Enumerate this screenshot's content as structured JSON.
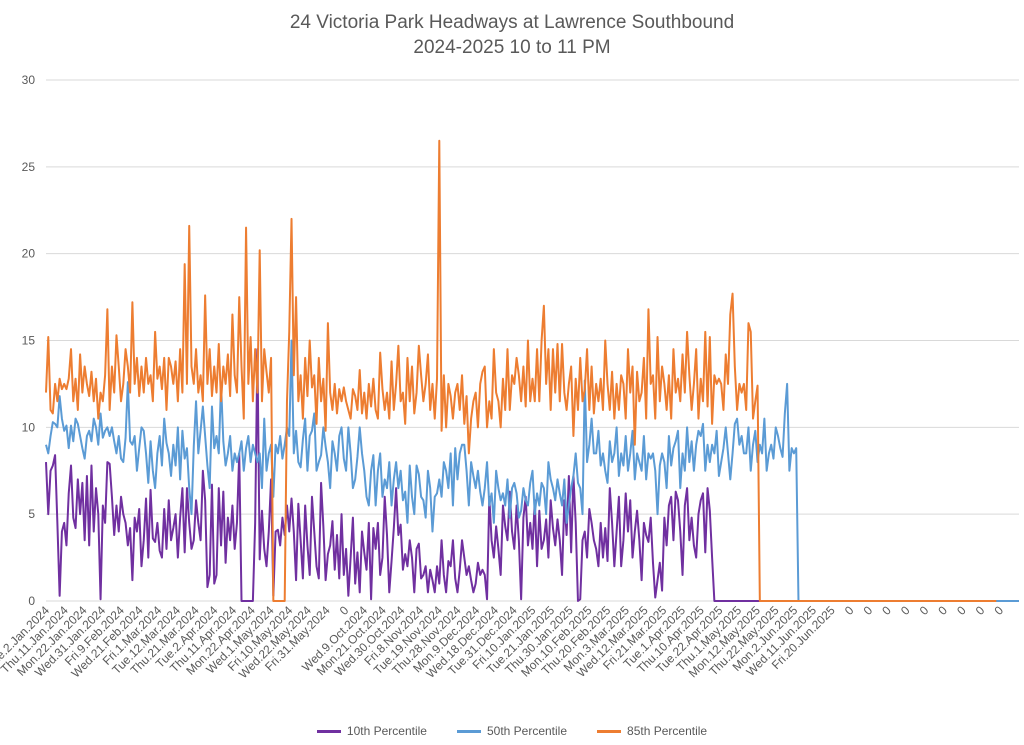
{
  "chart_data": {
    "type": "line",
    "title": "24 Victoria Park Headways at Lawrence Southbound",
    "subtitle": "2024-2025 10 to 11 PM",
    "xlabel": "",
    "ylabel": "",
    "ylim": [
      0,
      30
    ],
    "y_ticks": [
      0,
      5,
      10,
      15,
      20,
      25,
      30
    ],
    "grid": true,
    "legend_position": "bottom",
    "x_tick_labels": [
      "Tue.2.Jan.2024",
      "Thu.11.Jan.2024",
      "Mon.22.Jan.2024",
      "Wed.31.Jan.2024",
      "Fri.9.Feb.2024",
      "Wed.21.Feb.2024",
      "Fri.1.Mar.2024",
      "Tue.12.Mar.2024",
      "Thu.21.Mar.2024",
      "Tue.2.Apr.2024",
      "Thu.11.Apr.2024",
      "Mon.22.Apr.2024",
      "Wed.1.May.2024",
      "Fri.10.May.2024",
      "Wed.22.May.2024",
      "Fri.31.May.2024",
      "0",
      "Wed.9.Oct.2024",
      "Mon.21.Oct.2024",
      "Wed.30.Oct.2024",
      "Fri.8.Nov.2024",
      "Tue.19.Nov.2024",
      "Thu.28.Nov.2024",
      "Mon.9.Dec.2024",
      "Wed.18.Dec.2024",
      "Tue.31.Dec.2024",
      "Fri.10.Jan.2025",
      "Tue.21.Jan.2025",
      "Thu.30.Jan.2025",
      "Mon.10.Feb.2025",
      "Thu.20.Feb.2025",
      "Mon.3.Mar.2025",
      "Wed.12.Mar.2025",
      "Fri.21.Mar.2025",
      "Tue.1.Apr.2025",
      "Thu.10.Apr.2025",
      "Tue.22.Apr.2025",
      "Thu.1.May.2025",
      "Mon.12.May.2025",
      "Thu.22.May.2025",
      "Mon.2.Jun.2025",
      "Wed.11.Jun.2025",
      "Fri.20.Jun.2025",
      "0",
      "0",
      "0",
      "0",
      "0",
      "0",
      "0",
      "0",
      "0"
    ],
    "series": [
      {
        "name": "10th Percentile",
        "color": "#7030A0",
        "values": [
          8,
          5,
          7.5,
          7.8,
          8.4,
          4.5,
          0.3,
          4,
          4.5,
          3.2,
          6.2,
          7.8,
          4.8,
          4.2,
          7,
          5,
          6.8,
          3.5,
          7.2,
          3.2,
          7.8,
          4,
          6.5,
          5,
          0.1,
          5.5,
          4.5,
          8,
          7.9,
          6,
          3.8,
          5.5,
          4,
          6,
          5,
          4.5,
          3.2,
          4.2,
          1.2,
          4.8,
          4,
          5.3,
          2,
          3.5,
          5.9,
          2.5,
          6.4,
          3.6,
          3.4,
          4.5,
          2.9,
          2.5,
          5.3,
          3,
          5.8,
          3.5,
          4.2,
          5,
          2.5,
          4.8,
          6.5,
          2.8,
          6.5,
          4.5,
          3,
          3.5,
          5.8,
          4.5,
          3.5,
          7.5,
          5.8,
          0.8,
          1.5,
          6.7,
          1,
          1.5,
          6.5,
          3.2,
          6.3,
          2.2,
          4.8,
          3.5,
          5.5,
          3,
          4.5,
          8.5,
          0,
          0,
          0,
          0,
          0,
          0,
          4.5,
          14.5,
          2.4,
          5.2,
          3,
          2,
          4,
          7,
          0.3,
          4,
          4.1,
          3.2,
          4.8,
          3.8,
          5.5,
          4,
          5.9,
          4,
          1.2,
          5.6,
          3.5,
          1.3,
          5.5,
          3.2,
          1.5,
          6,
          4,
          2,
          1.3,
          6.8,
          4.3,
          1.2,
          2.7,
          3.2,
          4.6,
          1.8,
          3.8,
          1.3,
          5,
          1.5,
          3,
          0.3,
          2.5,
          4.8,
          1,
          2.8,
          0.5,
          4,
          2.8,
          1.8,
          4.5,
          0.1,
          4.2,
          3,
          4.5,
          1.5,
          2.5,
          6,
          3.8,
          0.5,
          2.3,
          4.2,
          6.5,
          3.8,
          4.4,
          1.8,
          2.7,
          2,
          3.5,
          2.5,
          0.5,
          3,
          3.3,
          1.3,
          1.5,
          2,
          0.5,
          1.8,
          1.2,
          0.5,
          2,
          1,
          3.5,
          1.5,
          0.5,
          2.3,
          2,
          3.5,
          1.3,
          0.5,
          1.8,
          3.5,
          2.5,
          1.5,
          2,
          1.2,
          0.5,
          1,
          2.2,
          1.5,
          1.8,
          1.5,
          0.1,
          6,
          3.5,
          2.5,
          4.3,
          3,
          1.5,
          5.5,
          4.3,
          3.5,
          6.3,
          4,
          3,
          5.5,
          3.5,
          0.1,
          4.8,
          6,
          3.2,
          4.5,
          3,
          5.8,
          2,
          5.2,
          3,
          3.5,
          4.7,
          2.5,
          5.8,
          4.2,
          3.2,
          4.7,
          3.5,
          1.5,
          5.8,
          3.8,
          7.2,
          2.8,
          7.2,
          4.5,
          0,
          0.1,
          3.5,
          4,
          2.5,
          5.3,
          4.5,
          3.5,
          3,
          2,
          4.5,
          2.5,
          4.2,
          2.3,
          6.5,
          4.5,
          2,
          4,
          6,
          2,
          3.5,
          6.2,
          4,
          5.8,
          2.5,
          4,
          5.2,
          3.5,
          1.2,
          4.5,
          3.8,
          3.4,
          4.8,
          2.2,
          0.2,
          1.2,
          2.2,
          0.6,
          4.8,
          3.2,
          5.5,
          6,
          3.5,
          6.3,
          5.8,
          4,
          1.5,
          5.5,
          6.5,
          3.5,
          4.8,
          3.2,
          2.5,
          5,
          5.8,
          6.2,
          2.8,
          6.5,
          5.2,
          2.5,
          0,
          0,
          0,
          0,
          0,
          0,
          0,
          0,
          0,
          0,
          0,
          0,
          0,
          0,
          0,
          0,
          0,
          0,
          0,
          0,
          0,
          0,
          0,
          0,
          0,
          0,
          0,
          0,
          0,
          0,
          0,
          0,
          0,
          0,
          0,
          0,
          0,
          0,
          0,
          0,
          0,
          0,
          0,
          0,
          0,
          0,
          0,
          0,
          0,
          0,
          0,
          0,
          0,
          0,
          0,
          0,
          0,
          0,
          0,
          0,
          0,
          0,
          0,
          0,
          0,
          0,
          0,
          0,
          0,
          0,
          0,
          0,
          0,
          0,
          0,
          0,
          0,
          0,
          0,
          0,
          0,
          0,
          0,
          0,
          0,
          0,
          0,
          0,
          0
        ]
      },
      {
        "name": "50th Percentile",
        "color": "#5B9BD5",
        "values": [
          9,
          8.5,
          9.5,
          10.3,
          10.2,
          10,
          11.8,
          10.5,
          9.8,
          10.1,
          8.8,
          10.1,
          9.2,
          10.5,
          10.2,
          9.5,
          8.8,
          8.2,
          9.5,
          9.8,
          9.2,
          10.5,
          10,
          9,
          10.8,
          9.4,
          9.8,
          10,
          9.5,
          10,
          9.2,
          8.5,
          9.5,
          8.2,
          8,
          9.4,
          12.6,
          9.2,
          9,
          9.5,
          7.5,
          8.8,
          10,
          9.8,
          8.5,
          6.8,
          9.2,
          7.5,
          6.5,
          8.5,
          9.5,
          7.8,
          10.5,
          9.1,
          8.5,
          7.2,
          9,
          7.8,
          10,
          7,
          9.8,
          8.2,
          8.8,
          6.5,
          5,
          8.9,
          11.5,
          8.5,
          9.8,
          11.2,
          9.5,
          7.8,
          6.5,
          11.2,
          8.8,
          9.5,
          8.5,
          12.5,
          9.2,
          7.8,
          8.5,
          9.5,
          7.5,
          8.5,
          8,
          8.5,
          9.2,
          7.5,
          8.8,
          9.5,
          8,
          9,
          8.5,
          8,
          8.5,
          6.5,
          10.5,
          7.5,
          8.5,
          9,
          6,
          9,
          8.5,
          9.5,
          8.2,
          9,
          10,
          9.5,
          15,
          8.5,
          9.8,
          8,
          7.7,
          9.3,
          10.5,
          7.5,
          9.5,
          9.8,
          10.8,
          7.5,
          8,
          8.4,
          10,
          8.9,
          8,
          6.5,
          9.2,
          8.5,
          7.5,
          9.5,
          10,
          8.2,
          7.5,
          10,
          8.5,
          6.5,
          7,
          8.3,
          10,
          8.5,
          7.5,
          6,
          5.5,
          7.5,
          8.4,
          5.5,
          7.5,
          8.5,
          6,
          7,
          6.5,
          8,
          5.5,
          7,
          8,
          6.5,
          7.5,
          5.8,
          6.3,
          4.5,
          7.8,
          6,
          5,
          7.8,
          7.3,
          6,
          5.8,
          4.8,
          7.5,
          6.5,
          4,
          6,
          6.2,
          7,
          6,
          8,
          7.5,
          6.5,
          8.5,
          5.5,
          8.8,
          7,
          8.5,
          9,
          9,
          7.5,
          5.5,
          8,
          7.2,
          6.5,
          7.5,
          6.3,
          5.5,
          6.5,
          8,
          5.5,
          6.2,
          4.5,
          7.5,
          6.5,
          5.8,
          6.2,
          5.5,
          7,
          4.8,
          6.5,
          6.8,
          6.2,
          4.8,
          5.2,
          6.5,
          5.8,
          5.5,
          6.8,
          7.5,
          5,
          6.2,
          5.5,
          6.8,
          6.5,
          5,
          8,
          7,
          6.5,
          5.8,
          7,
          6.2,
          5.5,
          7,
          4.5,
          5.5,
          6.5,
          7.2,
          8.5,
          6.8,
          6.5,
          5,
          12.7,
          8,
          9,
          10.5,
          8.5,
          8.5,
          9.8,
          7.8,
          8.5,
          7.5,
          6.8,
          9.2,
          8,
          8.5,
          10,
          7.2,
          8.5,
          7.8,
          9.5,
          7.5,
          8.5,
          9.8,
          7,
          8.5,
          8,
          7.5,
          9.5,
          7,
          8.5,
          8.2,
          8.5,
          7.5,
          5,
          7.8,
          8.5,
          8,
          6.5,
          9.5,
          7.8,
          8.8,
          9.2,
          9.8,
          6.5,
          8.5,
          7.5,
          10,
          8,
          9.2,
          7.5,
          9,
          9.8,
          9.5,
          10.2,
          7.5,
          9,
          8,
          9,
          8.5,
          9.8,
          7.2,
          8,
          8.8,
          10,
          8.5,
          7,
          8.5,
          10.2,
          10.5,
          9,
          9.5,
          8.5,
          8.5,
          10,
          7.5,
          9,
          9.8,
          8,
          9,
          8.5,
          10.5,
          7.5,
          8.5,
          9,
          8.2,
          10,
          9.5,
          8.8,
          8.3,
          10.8,
          12.5,
          7.5,
          8.8,
          8.5,
          8.8,
          0,
          0,
          0,
          0,
          0,
          0,
          0,
          0,
          0,
          0,
          0,
          0,
          0,
          0,
          0,
          0,
          0,
          0,
          0,
          0,
          0,
          0,
          0,
          0,
          0,
          0,
          0,
          0,
          0,
          0,
          0,
          0,
          0,
          0,
          0,
          0,
          0,
          0,
          0,
          0,
          0,
          0,
          0,
          0,
          0,
          0,
          0,
          0,
          0,
          0,
          0,
          0,
          0,
          0,
          0,
          0,
          0,
          0,
          0,
          0,
          0,
          0,
          0,
          0,
          0,
          0,
          0,
          0,
          0,
          0,
          0,
          0,
          0,
          0,
          0,
          0,
          0,
          0,
          0,
          0,
          0,
          0,
          0,
          0,
          0,
          0,
          0,
          0,
          0,
          0,
          0,
          0,
          0,
          0,
          0,
          0,
          0,
          0
        ]
      },
      {
        "name": "85th Percentile",
        "color": "#ED7D31",
        "values": [
          12,
          15.2,
          11,
          10.8,
          12.5,
          11.5,
          12.8,
          12.2,
          12.5,
          12.2,
          12.8,
          14.5,
          11.5,
          12.8,
          11,
          14.2,
          12,
          13.5,
          12.5,
          11.8,
          13.2,
          11.5,
          12.8,
          10.5,
          12,
          11.5,
          13,
          16.8,
          11,
          13.5,
          12,
          15.3,
          13.5,
          11.5,
          12.5,
          14.5,
          13.5,
          12,
          17.2,
          12.5,
          14,
          11.8,
          13.5,
          12,
          14,
          12.5,
          13,
          11.5,
          15.5,
          12.8,
          13.5,
          12.2,
          14,
          11,
          14,
          13.5,
          12.5,
          13.8,
          11.5,
          14.5,
          12,
          19.4,
          12.5,
          21.6,
          13.5,
          12.5,
          14.5,
          12,
          13,
          11.5,
          17.6,
          12.5,
          14.5,
          11.8,
          13.5,
          12,
          14.8,
          11.5,
          13.5,
          12.5,
          14.2,
          11.8,
          16.5,
          13,
          12,
          17.5,
          13.5,
          10.5,
          21.5,
          12.5,
          15.2,
          11.5,
          14.5,
          12,
          20.2,
          11.5,
          14.5,
          13.2,
          12,
          14,
          0,
          0,
          0,
          0,
          0,
          0,
          11.5,
          15.5,
          22,
          13,
          17.5,
          11.5,
          13,
          10.5,
          14,
          11.8,
          15,
          12.3,
          13,
          10.2,
          14,
          11.5,
          12.8,
          9.8,
          16,
          12,
          11,
          12.5,
          10.8,
          12.2,
          11.5,
          12.3,
          11.5,
          11,
          10.5,
          12.2,
          11.8,
          11,
          13.3,
          10.8,
          12,
          10.5,
          12.5,
          11.2,
          12.8,
          11,
          10.5,
          14.3,
          12.2,
          11,
          12,
          10.5,
          13.8,
          11,
          12.5,
          14.7,
          11.5,
          12,
          10.2,
          14,
          11.5,
          13.5,
          10.8,
          12,
          14.7,
          13,
          11.5,
          12.5,
          14.2,
          11,
          12.5,
          10.5,
          12.8,
          26.5,
          9.8,
          13,
          10,
          12.5,
          11.8,
          10.5,
          12,
          12.5,
          11,
          13,
          10.2,
          11.8,
          8.5,
          10.5,
          11.5,
          12,
          10,
          12.5,
          13.2,
          13.5,
          10,
          11.5,
          10.5,
          14.5,
          12,
          11.5,
          10,
          12.8,
          11,
          14.5,
          11,
          13,
          12.5,
          14,
          13,
          11.5,
          13.5,
          11.2,
          15,
          11.5,
          12.8,
          11.5,
          14.5,
          11.5,
          15,
          17,
          12.5,
          14.5,
          11,
          14.5,
          12,
          14.8,
          11.5,
          14.8,
          12,
          11,
          12.5,
          13.5,
          9.5,
          12.8,
          11,
          14,
          11.5,
          12.2,
          14.5,
          11,
          13.5,
          10.8,
          12.5,
          11.5,
          12.8,
          11,
          15,
          12.5,
          11,
          13.2,
          10.5,
          12.5,
          11,
          13,
          12.5,
          10.5,
          14.5,
          12,
          13.5,
          9,
          13.2,
          11.5,
          12,
          14,
          10.5,
          16.8,
          12.5,
          13,
          10.5,
          15.2,
          11.5,
          13.5,
          12.5,
          11,
          13,
          10.5,
          14.5,
          12,
          12.8,
          11.5,
          14.2,
          12,
          15.5,
          13,
          11,
          12.5,
          14.5,
          10.5,
          12.8,
          11.5,
          15.5,
          11.2,
          15.2,
          10.2,
          13,
          12.5,
          12.8,
          12.5,
          11,
          14.2,
          12.5,
          16.5,
          17.7,
          13.5,
          11,
          12.5,
          12,
          12.5,
          11,
          16,
          15.5,
          10.5,
          11.5,
          12.4,
          0,
          0,
          0,
          0,
          0,
          0,
          0,
          0,
          0,
          0,
          0,
          0,
          0,
          0,
          0,
          0,
          0,
          0,
          0,
          0,
          0,
          0,
          0,
          0,
          0,
          0,
          0,
          0,
          0,
          0,
          0,
          0,
          0,
          0,
          0,
          0,
          0,
          0,
          0,
          0,
          0,
          0,
          0,
          0,
          0,
          0,
          0,
          0,
          0,
          0,
          0,
          0,
          0,
          0,
          0,
          0,
          0,
          0,
          0,
          0,
          0,
          0,
          0,
          0,
          0,
          0,
          0,
          0,
          0,
          0,
          0,
          0,
          0,
          0,
          0,
          0,
          0,
          0,
          0,
          0,
          0,
          0,
          0,
          0,
          0,
          0,
          0,
          0,
          0,
          0,
          0,
          0,
          0,
          0,
          0,
          0,
          0,
          0,
          0,
          0,
          0,
          0,
          0,
          0,
          0
        ]
      }
    ]
  }
}
